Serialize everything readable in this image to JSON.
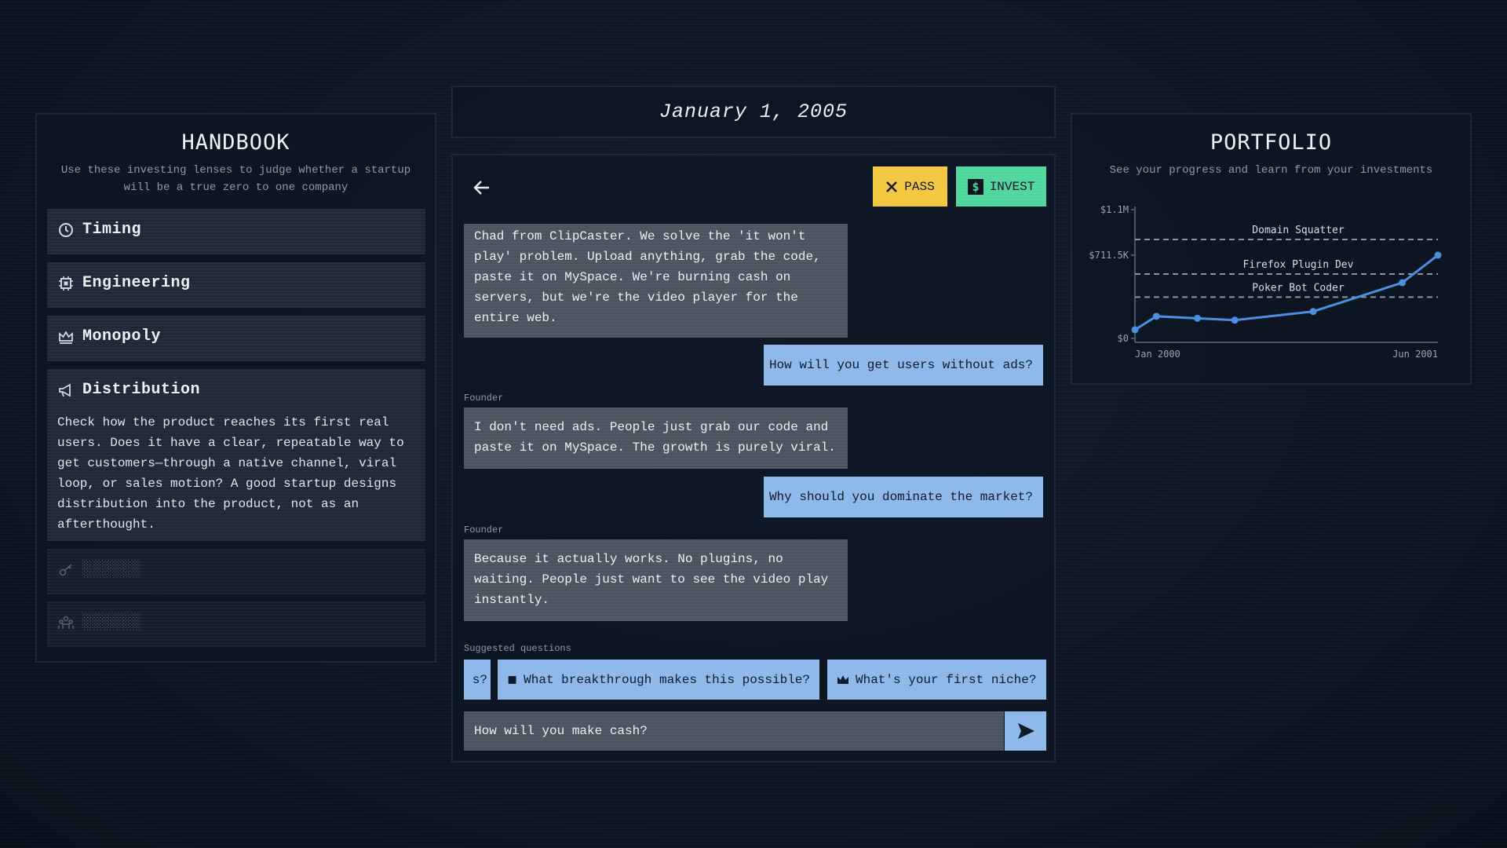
{
  "date": "January 1, 2005",
  "handbook": {
    "title": "HANDBOOK",
    "subtitle": "Use these investing lenses to judge whether a startup will be a true zero to one company",
    "items": [
      {
        "label": "Timing"
      },
      {
        "label": "Engineering"
      },
      {
        "label": "Monopoly"
      },
      {
        "label": "Distribution",
        "description": "Check how the product reaches its first real users. Does it have a clear, repeatable way to get customers—through a native channel, viral loop, or sales motion? A good startup designs distribution into the product, not as an afterthought."
      },
      {
        "label": "░░░░░░"
      },
      {
        "label": "░░░░░░"
      }
    ]
  },
  "chat": {
    "actions": {
      "pass": "PASS",
      "invest": "INVEST"
    },
    "messages": [
      {
        "text": "Chad from ClipCaster. We solve the 'it won't play' problem. Upload anything, grab the code, paste it on MySpace. We're burning cash on servers, but we're the video player for the entire web."
      },
      {
        "text": "How will you get users without ads?"
      },
      {
        "sender": "Founder",
        "text": "I don't need ads. People just grab our code and paste it on MySpace. The growth is purely viral."
      },
      {
        "text": "Why should you dominate the market?"
      },
      {
        "sender": "Founder",
        "text": "Because it actually works. No plugins, no waiting. People just want to see the video play instantly."
      }
    ],
    "suggested": {
      "label": "Suggested questions",
      "chips": [
        "s?",
        "What breakthrough makes this possible?",
        "What's your first niche?"
      ]
    },
    "input": "How will you make cash?"
  },
  "portfolio": {
    "title": "PORTFOLIO",
    "subtitle": "See your progress and learn from your investments",
    "chart": {
      "type": "line",
      "color": "#4a8fe0",
      "x": [
        0,
        1.2,
        3.5,
        5.6,
        10,
        15,
        17
      ],
      "values": [
        74000,
        189000,
        172000,
        156000,
        230000,
        476000,
        711500
      ],
      "xlim": [
        0,
        17
      ],
      "xticks": [
        {
          "value": 0,
          "label": "Jan 2000"
        },
        {
          "value": 17,
          "label": "Jun 2001"
        }
      ],
      "ylim": [
        0,
        1100000
      ],
      "yticks": [
        {
          "value": 0,
          "label": "$0"
        },
        {
          "value": 711500,
          "label": "$711.5K"
        },
        {
          "value": 1100000,
          "label": "$1.1M"
        }
      ],
      "reference_lines": [
        {
          "label": "Domain Squatter",
          "value": 845000
        },
        {
          "label": "Firefox Plugin Dev",
          "value": 550000
        },
        {
          "label": "Poker Bot Coder",
          "value": 353000
        }
      ]
    }
  }
}
